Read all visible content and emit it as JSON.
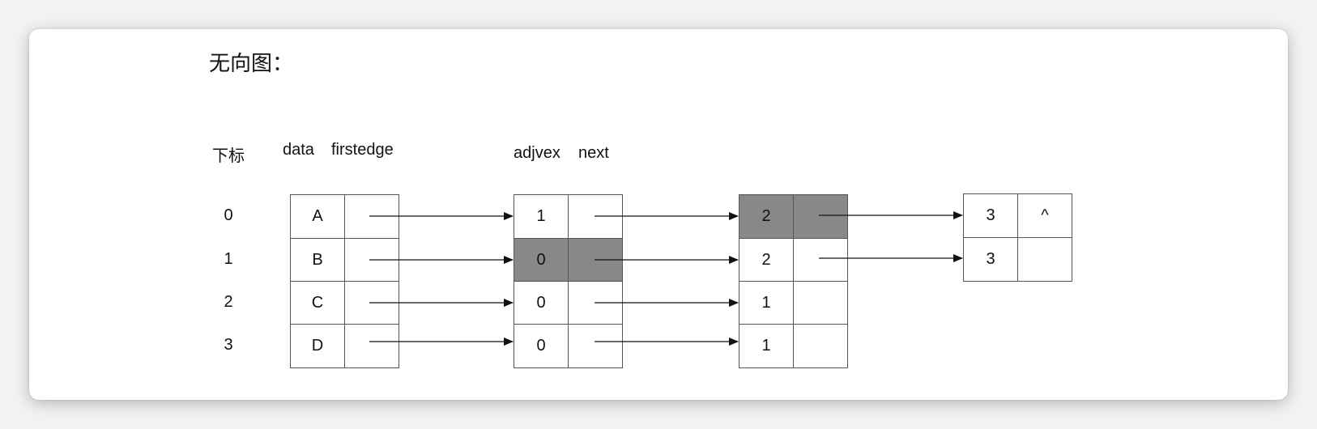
{
  "title": "无向图：",
  "headers": {
    "index": "下标",
    "data": "data",
    "firstedge": "firstedge",
    "adjvex": "adjvex",
    "next": "next"
  },
  "vertices": [
    {
      "index": "0",
      "data": "A",
      "firstedge": ""
    },
    {
      "index": "1",
      "data": "B",
      "firstedge": ""
    },
    {
      "index": "2",
      "data": "C",
      "firstedge": ""
    },
    {
      "index": "3",
      "data": "D",
      "firstedge": ""
    }
  ],
  "edge_columns": [
    [
      {
        "adjvex": "1",
        "next": "",
        "highlighted": false
      },
      {
        "adjvex": "0",
        "next": "",
        "highlighted": true
      },
      {
        "adjvex": "0",
        "next": "",
        "highlighted": false
      },
      {
        "adjvex": "0",
        "next": "",
        "highlighted": false
      }
    ],
    [
      {
        "adjvex": "2",
        "next": "",
        "highlighted": true
      },
      {
        "adjvex": "2",
        "next": "",
        "highlighted": false
      },
      {
        "adjvex": "1",
        "next": "",
        "highlighted": false
      },
      {
        "adjvex": "1",
        "next": "",
        "highlighted": false
      }
    ],
    [
      {
        "adjvex": "3",
        "next": "^",
        "highlighted": false
      },
      {
        "adjvex": "3",
        "next": "",
        "highlighted": false
      }
    ]
  ],
  "colors": {
    "highlight": "#888888",
    "border": "#555555",
    "arrow": "#111111"
  }
}
